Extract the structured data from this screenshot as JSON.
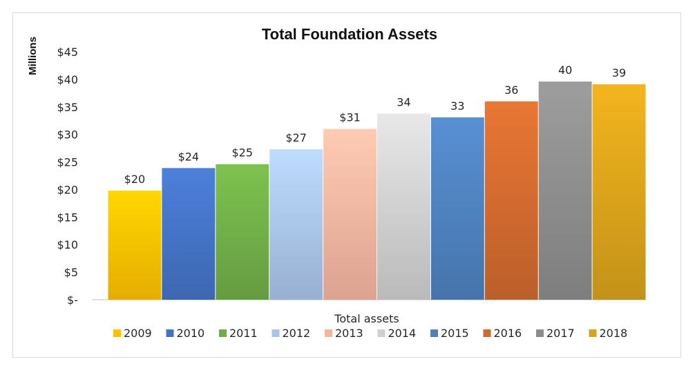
{
  "chart_data": {
    "type": "bar",
    "title": "Total Foundation Assets",
    "ylabel": "Millions",
    "xlabel": "Total assets",
    "ylim": [
      0,
      45
    ],
    "ytick_values": [
      0,
      5,
      10,
      15,
      20,
      25,
      30,
      35,
      40,
      45
    ],
    "ytick_labels": [
      "$-",
      "$5",
      "$10",
      "$15",
      "$20",
      "$25",
      "$30",
      "$35",
      "$40",
      "$45"
    ],
    "legend_position": "bottom",
    "grid": false,
    "series": [
      {
        "name": "2009",
        "value": 19.8,
        "label": "$20",
        "color": "#ffc000"
      },
      {
        "name": "2010",
        "value": 23.9,
        "label": "$24",
        "color": "#4472c4"
      },
      {
        "name": "2011",
        "value": 24.6,
        "label": "$25",
        "color": "#70ad47"
      },
      {
        "name": "2012",
        "value": 27.3,
        "label": "$27",
        "color": "#a9c4e8"
      },
      {
        "name": "2013",
        "value": 31.0,
        "label": "$31",
        "color": "#f4b5a0"
      },
      {
        "name": "2014",
        "value": 33.8,
        "label": "34",
        "color": "#cfcfcf"
      },
      {
        "name": "2015",
        "value": 33.1,
        "label": "33",
        "color": "#4e81bd"
      },
      {
        "name": "2016",
        "value": 36.0,
        "label": "36",
        "color": "#d0692f"
      },
      {
        "name": "2017",
        "value": 39.6,
        "label": "40",
        "color": "#8c8c8c"
      },
      {
        "name": "2018",
        "value": 39.1,
        "label": "39",
        "color": "#d9a21b"
      }
    ]
  }
}
